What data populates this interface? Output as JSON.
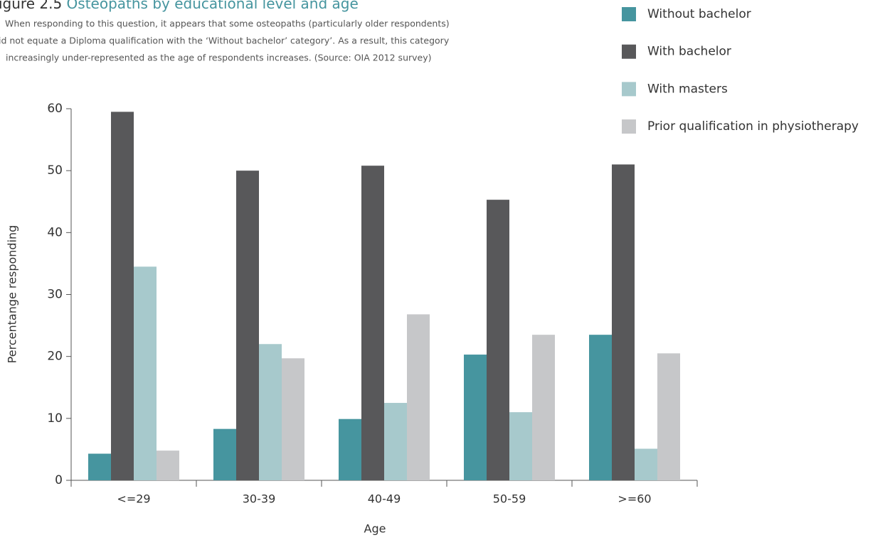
{
  "chart_data": {
    "type": "bar",
    "title": [
      "igure 2.5",
      "Osteopaths by educational level and age"
    ],
    "subtitle": [
      "When responding to this question, it appears that some osteopaths (particularly older respondents)",
      "id not equate a Diploma qualification with the ‘Without bachelor’ category’. As a result, this category",
      "increasingly under-represented as the age of respondents increases. (Source: OIA 2012 survey)"
    ],
    "x_label": "Age",
    "y_label": "Percentange responding",
    "categories": [
      "<=29",
      "30-39",
      "40-49",
      "50-59",
      ">=60"
    ],
    "series": [
      {
        "name": "Without bachelor",
        "color": "#46959f",
        "values": [
          4.3,
          8.3,
          9.9,
          20.3,
          23.5
        ]
      },
      {
        "name": "With bachelor",
        "color": "#58585a",
        "values": [
          59.5,
          50,
          50.8,
          45.3,
          51
        ]
      },
      {
        "name": "With masters",
        "color": "#a7c9cc",
        "values": [
          34.5,
          22,
          12.5,
          11,
          5.1
        ]
      },
      {
        "name": "Prior qualification in physiotherapy",
        "color": "#c6c7c9",
        "values": [
          4.8,
          19.7,
          26.8,
          23.5,
          20.5
        ]
      }
    ],
    "ylim": [
      0,
      60
    ],
    "yticks": [
      0,
      10,
      20,
      30,
      40,
      50,
      60
    ],
    "grid": false,
    "legend": "top-right"
  }
}
